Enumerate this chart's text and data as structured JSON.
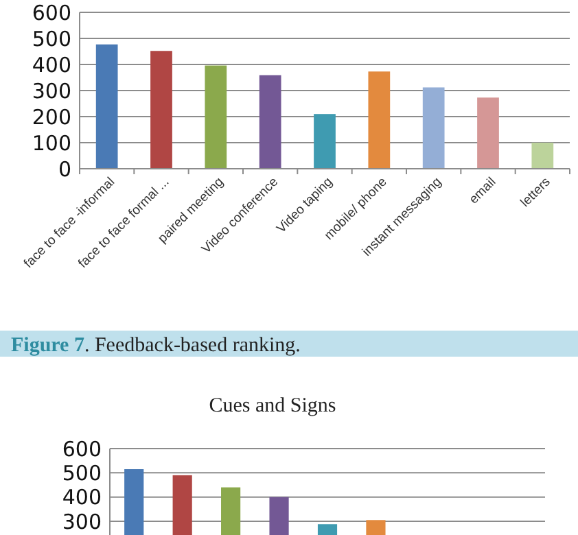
{
  "chart_data": [
    {
      "type": "bar",
      "categories": [
        "face to face -informal",
        "face to face formal ...",
        "paired meeting",
        "Video conference",
        "Video taping",
        "mobile/ phone",
        "instant messaging",
        "email",
        "letters"
      ],
      "values": [
        477,
        452,
        396,
        359,
        210,
        373,
        312,
        273,
        100
      ],
      "colors": [
        "#4a7ab5",
        "#b04644",
        "#8ba94c",
        "#735895",
        "#3f9bb1",
        "#e38a3e",
        "#94aed6",
        "#d59796",
        "#bcd39b"
      ],
      "ylim": [
        0,
        600
      ],
      "yticks": [
        0,
        100,
        200,
        300,
        400,
        500,
        600
      ],
      "grid": "y",
      "annotations": [
        "Figure 7. Feedback-based ranking."
      ]
    },
    {
      "type": "bar",
      "title": "Cues and Signs",
      "categories": [
        null,
        null,
        null,
        null,
        null,
        null,
        null,
        null,
        null
      ],
      "values": [
        515,
        490,
        440,
        400,
        288,
        305,
        null,
        null,
        null
      ],
      "colors": [
        "#4a7ab5",
        "#b04644",
        "#8ba94c",
        "#735895",
        "#3f9bb1",
        "#e38a3e",
        null,
        null,
        null
      ],
      "ylim": [
        0,
        600
      ],
      "yticks": [
        300,
        400,
        500,
        600
      ],
      "grid": "y",
      "tick_labels": "y"
    }
  ]
}
